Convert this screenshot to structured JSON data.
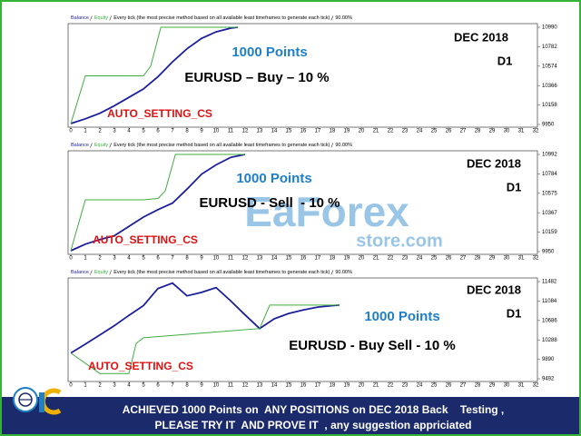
{
  "chart_data": [
    {
      "type": "line",
      "subtitle": "Every tick (the most precise method based on all available least timeframes to generate each tick)",
      "quality": "90.00%",
      "xlim": [
        0,
        32
      ],
      "xticks": [
        0,
        1,
        2,
        3,
        4,
        5,
        6,
        7,
        8,
        9,
        10,
        11,
        12,
        13,
        14,
        15,
        16,
        17,
        18,
        19,
        20,
        21,
        22,
        23,
        24,
        25,
        26,
        27,
        28,
        29,
        30,
        31,
        32
      ],
      "ylim": [
        9950,
        10990
      ],
      "yticks": [
        9950,
        10158,
        10366,
        10574,
        10782,
        10990
      ],
      "grid": false,
      "series": [
        {
          "name": "Balance",
          "color": "#1c1f9c",
          "x": [
            0,
            1,
            2,
            3,
            4,
            5,
            6,
            7,
            8,
            9,
            10,
            11,
            11.5
          ],
          "values": [
            9960,
            10010,
            10070,
            10150,
            10240,
            10330,
            10460,
            10620,
            10760,
            10870,
            10940,
            10980,
            10990
          ]
        },
        {
          "name": "Equity",
          "color": "#3fae3f",
          "x": [
            0,
            1,
            5,
            5.5,
            6.2,
            11.5
          ],
          "values": [
            9960,
            10470,
            10470,
            10574,
            10990,
            10990
          ]
        }
      ],
      "annotations": [
        {
          "text": "1000 Points",
          "color": "#1e7fc8"
        },
        {
          "text": "EURUSD – Buy – 10 %",
          "color": "#000000"
        },
        {
          "text": "DEC 2018",
          "color": "#000000"
        },
        {
          "text": "D1",
          "color": "#000000"
        },
        {
          "text": "AUTO_SETTING_CS",
          "color": "#e01010"
        }
      ]
    },
    {
      "type": "line",
      "subtitle": "Every tick (the most precise method based on all available least timeframes to generate each tick)",
      "quality": "90.00%",
      "xlim": [
        0,
        32
      ],
      "xticks": [
        0,
        1,
        2,
        3,
        4,
        5,
        6,
        7,
        8,
        9,
        10,
        11,
        12,
        13,
        14,
        15,
        16,
        17,
        18,
        19,
        20,
        21,
        22,
        23,
        24,
        25,
        26,
        27,
        28,
        29,
        30,
        31,
        32
      ],
      "ylim": [
        9950,
        10992
      ],
      "yticks": [
        9950,
        10159,
        10367,
        10575,
        10784,
        10992
      ],
      "grid": false,
      "series": [
        {
          "name": "Balance",
          "color": "#1c1f9c",
          "x": [
            0,
            1,
            2,
            3,
            4,
            5,
            6,
            7,
            8,
            9,
            10,
            11,
            12
          ],
          "values": [
            9960,
            10030,
            10080,
            10120,
            10220,
            10320,
            10400,
            10470,
            10620,
            10780,
            10880,
            10960,
            10992
          ]
        },
        {
          "name": "Equity",
          "color": "#3fae3f",
          "x": [
            0,
            1,
            5,
            6,
            6.5,
            7.2,
            12
          ],
          "values": [
            9960,
            10505,
            10505,
            10520,
            10600,
            10992,
            10992
          ]
        }
      ],
      "annotations": [
        {
          "text": "1000 Points",
          "color": "#1e7fc8"
        },
        {
          "text": "EURUSD - Sell  - 10 %",
          "color": "#000000"
        },
        {
          "text": "DEC 2018",
          "color": "#000000"
        },
        {
          "text": "D1",
          "color": "#000000"
        },
        {
          "text": "AUTO_SETTING_CS",
          "color": "#e01010"
        }
      ],
      "watermark": [
        "EaForex",
        "store.com"
      ]
    },
    {
      "type": "line",
      "subtitle": "Every tick (the most precise method based on all available least timeframes to generate each tick)",
      "quality": "90.00%",
      "xlim": [
        0,
        32
      ],
      "xticks": [
        0,
        1,
        2,
        3,
        4,
        5,
        6,
        7,
        8,
        9,
        10,
        11,
        12,
        13,
        14,
        15,
        16,
        17,
        18,
        19,
        20,
        21,
        22,
        23,
        24,
        25,
        26,
        27,
        28,
        29,
        30,
        31,
        32
      ],
      "ylim": [
        9492,
        11482
      ],
      "yticks": [
        9492,
        9890,
        10288,
        10686,
        11084,
        11482
      ],
      "grid": false,
      "series": [
        {
          "name": "Balance",
          "color": "#1c1f9c",
          "x": [
            0,
            1,
            2,
            3,
            4,
            5,
            6,
            7,
            8,
            9,
            10,
            11,
            12,
            13,
            14,
            15,
            16,
            17,
            18,
            18.5
          ],
          "values": [
            10020,
            10200,
            10390,
            10580,
            10790,
            10990,
            11340,
            11450,
            11190,
            11260,
            11360,
            11090,
            10800,
            10520,
            10720,
            10830,
            10900,
            10960,
            10990,
            11000
          ]
        },
        {
          "name": "Equity",
          "color": "#3fae3f",
          "x": [
            0,
            2,
            4,
            4.5,
            5,
            13,
            13.7,
            18.5
          ],
          "values": [
            10020,
            9600,
            9600,
            10217,
            10330,
            10520,
            11000,
            11000
          ]
        }
      ],
      "annotations": [
        {
          "text": "1000 Points",
          "color": "#1e7fc8"
        },
        {
          "text": "EURUSD - Buy Sell - 10 %",
          "color": "#000000"
        },
        {
          "text": "DEC 2018",
          "color": "#000000"
        },
        {
          "text": "D1",
          "color": "#000000"
        },
        {
          "text": "AUTO_SETTING_CS",
          "color": "#e01010"
        }
      ]
    }
  ],
  "footer": {
    "lines": [
      "ACHIEVED 1000 Points on  ANY POSITIONS on DEC 2018 Back    Testing ,",
      "PLEASE TRY IT  AND PROVE IT  , any suggestion appriciated"
    ]
  }
}
